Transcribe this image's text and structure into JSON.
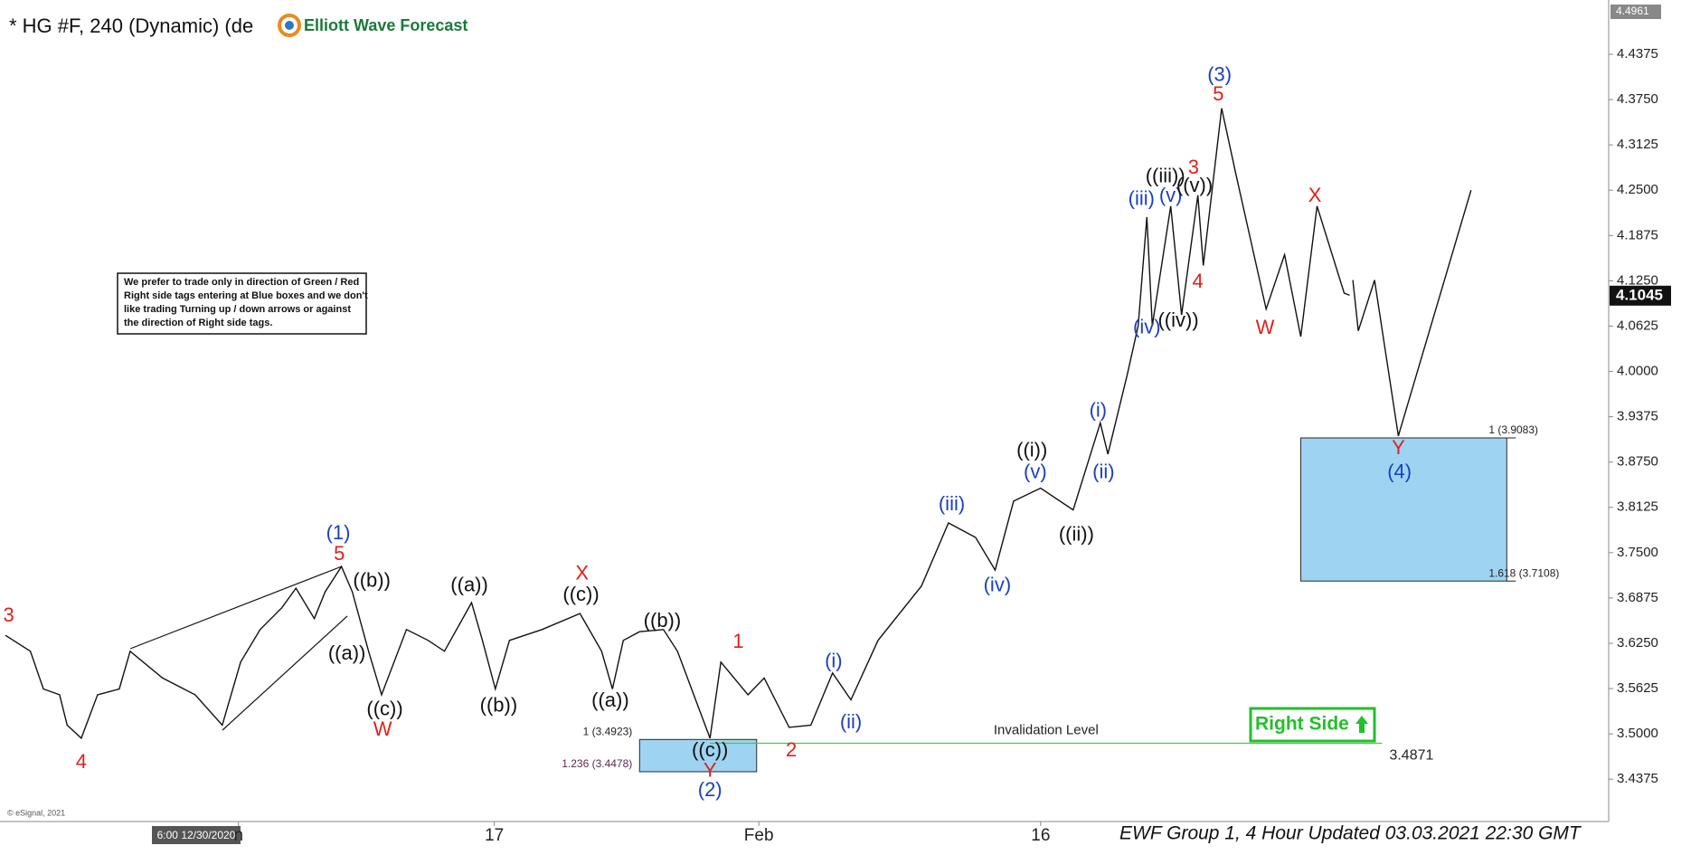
{
  "chart_data": {
    "type": "line",
    "title": "* HG #F, 240 (Dynamic) (de",
    "logo": "Elliott Wave Forecast",
    "note": [
      "We prefer to trade only in direction of Green / Red",
      "Right side tags entering at Blue boxes and we don't",
      "like trading Turning up / down arrows or against",
      "the direction of Right side tags."
    ],
    "footer": "EWF Group 1, 4 Hour Updated 03.03.2021 22:30 GMT",
    "copyright": "© eSignal, 2021",
    "cursor_label": "6:00 12/30/2020",
    "right_side": "Right Side",
    "xlim": [
      0,
      371
    ],
    "ylim": [
      3.3791,
      4.4974
    ],
    "xticks": [
      {
        "value": 55,
        "label": "n"
      },
      {
        "value": 114,
        "label": "17"
      },
      {
        "value": 175,
        "label": "Feb"
      },
      {
        "value": 240,
        "label": "16"
      }
    ],
    "yticks": [
      3.4375,
      {
        "value": 3.5,
        "label": "3.5000"
      },
      3.5625,
      {
        "value": 3.625,
        "label": "3.6250"
      },
      3.6875,
      {
        "value": 3.75,
        "label": "3.7500"
      },
      3.8125,
      {
        "value": 3.875,
        "label": "3.8750"
      },
      3.9375,
      {
        "value": 4,
        "label": "4.0000"
      },
      4.0625,
      {
        "value": 4.125,
        "label": "4.1250"
      },
      4.1875,
      {
        "value": 4.25,
        "label": "4.2500"
      },
      4.3125,
      {
        "value": 4.375,
        "label": "4.3750"
      },
      4.4375
    ],
    "high_marker": 4.4961,
    "last_price": 4.1045,
    "series": [
      {
        "color": "#111111",
        "x": [
          1.25,
          7,
          10,
          13.75,
          15.5,
          18.75,
          22.5,
          27.5,
          30,
          37.5,
          45,
          51.25,
          55.5,
          60,
          65,
          68.25,
          72.5,
          75,
          78.75,
          81.25,
          85,
          88,
          93.75,
          98.75,
          102.5,
          108.75,
          111.25,
          114.25,
          117.5,
          125,
          133.75,
          138.75,
          141.25,
          143.75,
          147.5,
          153,
          156.25,
          160,
          163.75,
          166.25,
          172.5,
          176.25,
          182,
          187,
          192,
          196.25,
          202.5,
          212.5,
          218.75,
          225,
          229.5,
          233.75,
          240,
          247.5,
          253.75,
          255.5,
          260,
          262.5,
          264.5,
          265.75,
          270,
          272.5,
          276.25,
          277.5,
          281.75,
          285,
          292,
          296.25,
          300,
          303.75,
          310,
          311.25
        ],
        "values": [
          3.636,
          3.614,
          3.562,
          3.554,
          3.512,
          3.494,
          3.554,
          3.562,
          3.614,
          3.577,
          3.554,
          3.512,
          3.599,
          3.644,
          3.674,
          3.701,
          3.659,
          3.696,
          3.731,
          3.696,
          3.614,
          3.554,
          3.644,
          3.629,
          3.614,
          3.681,
          3.629,
          3.562,
          3.629,
          3.644,
          3.666,
          3.614,
          3.562,
          3.629,
          3.641,
          3.644,
          3.614,
          3.554,
          3.494,
          3.599,
          3.554,
          3.577,
          3.509,
          3.512,
          3.584,
          3.547,
          3.629,
          3.704,
          3.791,
          3.771,
          3.726,
          3.821,
          3.839,
          3.809,
          3.929,
          3.886,
          3.996,
          4.063,
          4.213,
          4.063,
          4.228,
          4.078,
          4.243,
          4.146,
          4.363,
          4.273,
          4.086,
          4.161,
          4.048,
          4.228,
          4.108,
          4.105
        ]
      },
      {
        "color": "#111111",
        "x": [
          312,
          313.25,
          317,
          322.5,
          339.25
        ],
        "values": [
          4.126,
          4.056,
          4.126,
          3.911,
          4.25
        ]
      }
    ],
    "annotations": [
      {
        "text": "3",
        "x": 2,
        "y": 3.662,
        "color": "#e0201b"
      },
      {
        "text": "4",
        "x": 18.75,
        "y": 3.46,
        "color": "#e0201b"
      },
      {
        "text": "5",
        "x": 78.25,
        "y": 3.747,
        "color": "#e0201b"
      },
      {
        "text": "W",
        "x": 88.25,
        "y": 3.505,
        "color": "#e0201b"
      },
      {
        "text": "X",
        "x": 134.25,
        "y": 3.72,
        "color": "#e0201b"
      },
      {
        "text": "1",
        "x": 170.25,
        "y": 3.626,
        "color": "#e0201b"
      },
      {
        "text": "2",
        "x": 182.5,
        "y": 3.476,
        "color": "#e0201b"
      },
      {
        "text": "Y",
        "x": 163.75,
        "y": 3.448,
        "color": "#e0201b"
      },
      {
        "text": "3",
        "x": 275.25,
        "y": 4.28,
        "color": "#e0201b"
      },
      {
        "text": "4",
        "x": 276.25,
        "y": 4.123,
        "color": "#e0201b"
      },
      {
        "text": "5",
        "x": 281,
        "y": 4.381,
        "color": "#e0201b"
      },
      {
        "text": "W",
        "x": 291.75,
        "y": 4.059,
        "color": "#e0201b"
      },
      {
        "text": "X",
        "x": 303.25,
        "y": 4.241,
        "color": "#e0201b"
      },
      {
        "text": "Y",
        "x": 322.5,
        "y": 3.893,
        "color": "#e0201b"
      },
      {
        "text": "(1)",
        "x": 78,
        "y": 3.776,
        "color": "#1a3fc0"
      },
      {
        "text": "(2)",
        "x": 163.75,
        "y": 3.421,
        "color": "#1a3fc0"
      },
      {
        "text": "(3)",
        "x": 281.25,
        "y": 4.408,
        "color": "#1a3fc0"
      },
      {
        "text": "(4)",
        "x": 322.75,
        "y": 3.86,
        "color": "#1a3fc0"
      },
      {
        "text": "(i)",
        "x": 192.25,
        "y": 3.599,
        "color": "#1a3fc0"
      },
      {
        "text": "(ii)",
        "x": 196.25,
        "y": 3.515,
        "color": "#1a3fc0"
      },
      {
        "text": "(iii)",
        "x": 219.5,
        "y": 3.816,
        "color": "#1a3fc0"
      },
      {
        "text": "(iv)",
        "x": 230,
        "y": 3.704,
        "color": "#1a3fc0"
      },
      {
        "text": "(v)",
        "x": 238.75,
        "y": 3.86,
        "color": "#1a3fc0"
      },
      {
        "text": "(i)",
        "x": 253.25,
        "y": 3.945,
        "color": "#1a3fc0"
      },
      {
        "text": "(ii)",
        "x": 254.5,
        "y": 3.86,
        "color": "#1a3fc0"
      },
      {
        "text": "(iii)",
        "x": 263.25,
        "y": 4.237,
        "color": "#1a3fc0"
      },
      {
        "text": "(iv)",
        "x": 264.5,
        "y": 4.06,
        "color": "#1a3fc0"
      },
      {
        "text": "(v)",
        "x": 270,
        "y": 4.241,
        "color": "#1a3fc0"
      },
      {
        "text": "((b))",
        "x": 85.75,
        "y": 3.71,
        "color": "#111111"
      },
      {
        "text": "((a))",
        "x": 80,
        "y": 3.61,
        "color": "#111111"
      },
      {
        "text": "((c))",
        "x": 88.75,
        "y": 3.533,
        "color": "#111111"
      },
      {
        "text": "((a))",
        "x": 108.25,
        "y": 3.704,
        "color": "#111111"
      },
      {
        "text": "((b))",
        "x": 115,
        "y": 3.538,
        "color": "#111111"
      },
      {
        "text": "((c))",
        "x": 134,
        "y": 3.691,
        "color": "#111111"
      },
      {
        "text": "((a))",
        "x": 140.75,
        "y": 3.545,
        "color": "#111111"
      },
      {
        "text": "((b))",
        "x": 152.75,
        "y": 3.655,
        "color": "#111111"
      },
      {
        "text": "((c))",
        "x": 163.75,
        "y": 3.476,
        "color": "#111111"
      },
      {
        "text": "((i))",
        "x": 238,
        "y": 3.89,
        "color": "#111111"
      },
      {
        "text": "((ii))",
        "x": 248.25,
        "y": 3.774,
        "color": "#111111"
      },
      {
        "text": "((iii))",
        "x": 268.75,
        "y": 4.268,
        "color": "#111111"
      },
      {
        "text": "((iv))",
        "x": 271.75,
        "y": 4.069,
        "color": "#111111"
      },
      {
        "text": "((v))",
        "x": 275.5,
        "y": 4.255,
        "color": "#111111"
      }
    ],
    "zones": [
      {
        "x": [
          147.5,
          174.5
        ],
        "top": 3.4923,
        "bottom": 3.4478,
        "labels": [
          "1 (3.4923)",
          "1.236 (3.4478)"
        ],
        "label_side": "left",
        "color": "#9fd3f2"
      },
      {
        "x": [
          300,
          347.5
        ],
        "top": 3.9083,
        "bottom": 3.7108,
        "labels": [
          "1 (3.9083)",
          "1.618 (3.7108)"
        ],
        "label_side": "right",
        "color": "#9fd3f2"
      }
    ],
    "invalidation": {
      "text": "Invalidation Level",
      "value": 3.4871,
      "x": [
        163.75,
        318.75
      ],
      "color": "#3ad13a"
    }
  }
}
